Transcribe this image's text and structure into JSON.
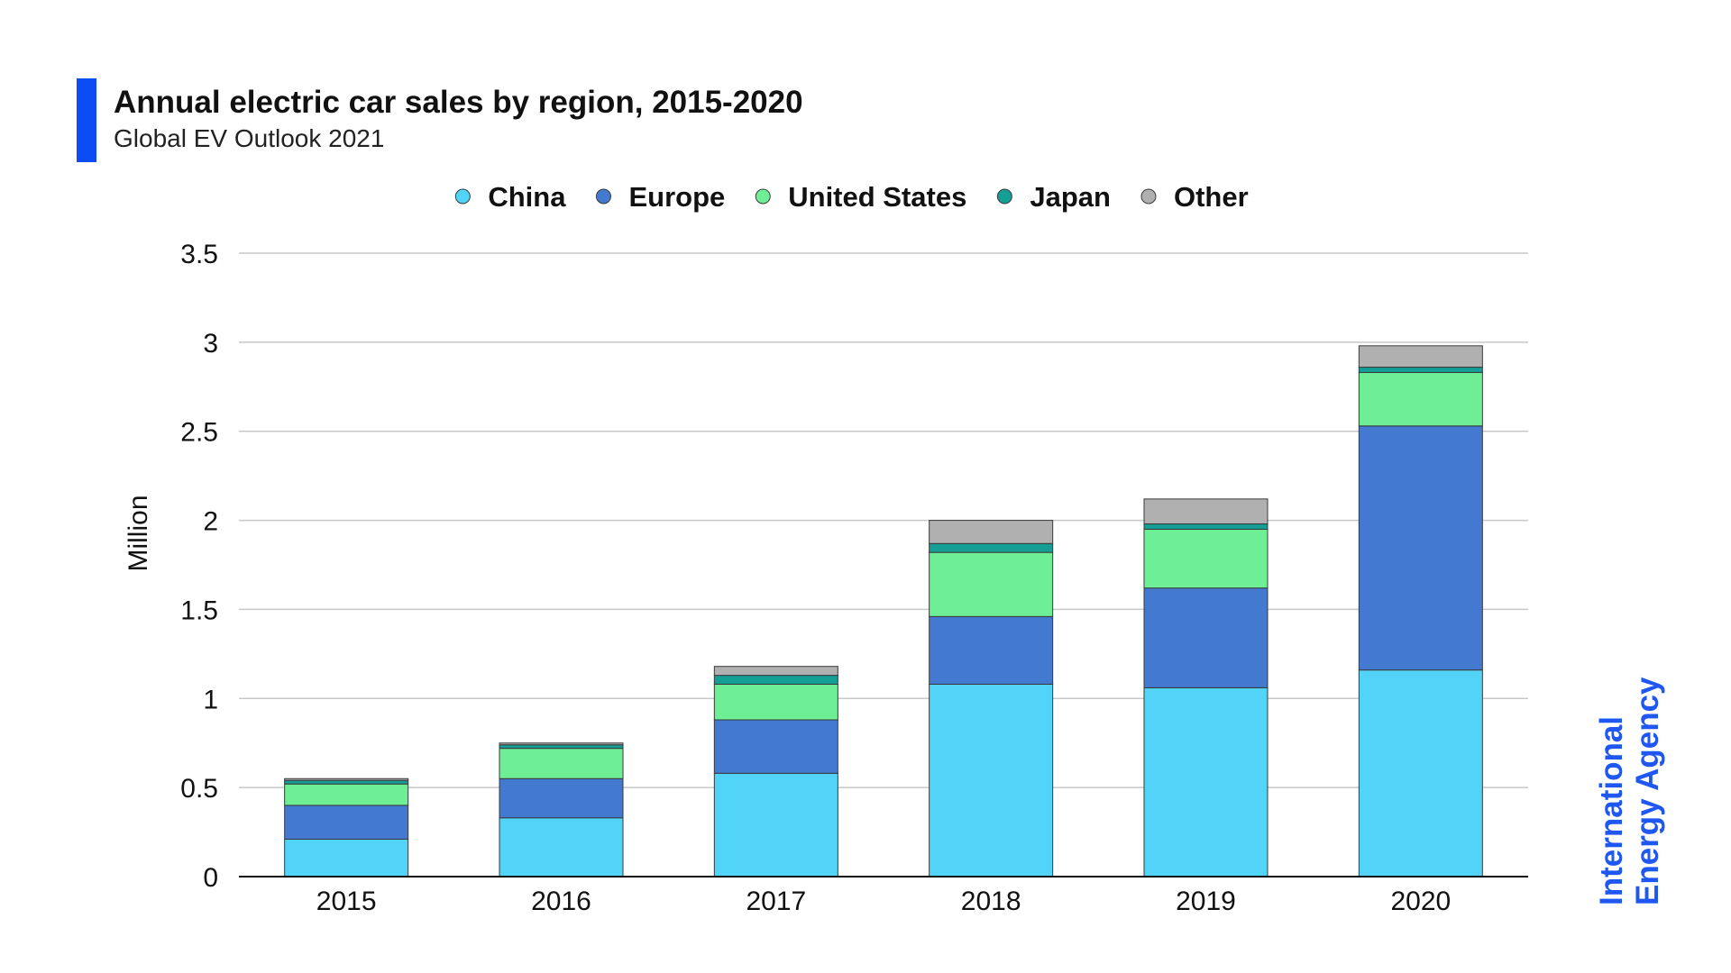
{
  "header": {
    "title": "Annual electric car sales by region, 2015-2020",
    "subtitle": "Global EV Outlook 2021"
  },
  "brand": {
    "line1": "International",
    "line2": "Energy Agency",
    "color": "#1e57f2"
  },
  "accent_color": "#0d4cf5",
  "chart_data": {
    "type": "bar",
    "stacked": true,
    "categories": [
      "2015",
      "2016",
      "2017",
      "2018",
      "2019",
      "2020"
    ],
    "series": [
      {
        "name": "China",
        "color": "#52d3f8",
        "values": [
          0.21,
          0.33,
          0.58,
          1.08,
          1.06,
          1.16
        ]
      },
      {
        "name": "Europe",
        "color": "#4379cf",
        "values": [
          0.19,
          0.22,
          0.3,
          0.38,
          0.56,
          1.37
        ]
      },
      {
        "name": "United States",
        "color": "#6eef95",
        "values": [
          0.12,
          0.17,
          0.2,
          0.36,
          0.33,
          0.3
        ]
      },
      {
        "name": "Japan",
        "color": "#159e96",
        "values": [
          0.02,
          0.02,
          0.05,
          0.05,
          0.03,
          0.03
        ]
      },
      {
        "name": "Other",
        "color": "#b0b0b0",
        "values": [
          0.01,
          0.01,
          0.05,
          0.13,
          0.14,
          0.12
        ]
      }
    ],
    "title": "Annual electric car sales by region, 2015-2020",
    "xlabel": "",
    "ylabel": "Million",
    "ylim": [
      0,
      3.5
    ],
    "yticks": [
      "0",
      "0.5",
      "1",
      "1.5",
      "2",
      "2.5",
      "3",
      "3.5"
    ],
    "ytick_values": [
      0,
      0.5,
      1,
      1.5,
      2,
      2.5,
      3,
      3.5
    ],
    "grid": true,
    "legend": "top-center"
  }
}
